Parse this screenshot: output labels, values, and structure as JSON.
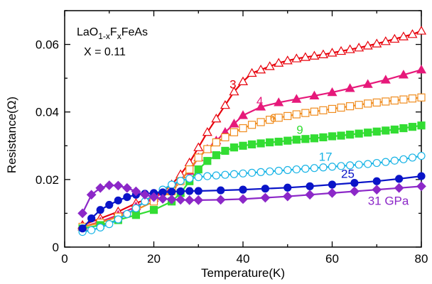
{
  "chart_data": {
    "type": "line",
    "title": "",
    "xlabel": "Temperature(K)",
    "ylabel": "Resistance(Ω)",
    "xlim": [
      0,
      80
    ],
    "ylim": [
      0,
      0.07
    ],
    "xticks": [
      "0",
      "20",
      "40",
      "60",
      "80"
    ],
    "yticks": [
      "0",
      "0.02",
      "0.04",
      "0.06"
    ],
    "xtick_values": [
      0,
      20,
      40,
      60,
      80
    ],
    "ytick_values": [
      0,
      0.02,
      0.04,
      0.06
    ],
    "grid": false,
    "legend": "inline labels",
    "annotation": {
      "compound": "LaO1-xFxFeAs",
      "compound_base": "LaO",
      "compound_sub1": "1-x",
      "compound_mid": "F",
      "compound_sub2": "x",
      "compound_end": "FeAs",
      "doping": "X = 0.11"
    },
    "series": [
      {
        "name": "3",
        "color": "#e8000b",
        "marker": "triangle-open",
        "label_at": [
          37,
          0.047
        ],
        "x": [
          4,
          8,
          12,
          16,
          20,
          22,
          24,
          26,
          28,
          30,
          32,
          34,
          36,
          38,
          40,
          42,
          44,
          46,
          48,
          50,
          52,
          54,
          56,
          58,
          60,
          62,
          64,
          66,
          68,
          70,
          72,
          74,
          76,
          78,
          80
        ],
        "y": [
          0.0065,
          0.0085,
          0.0105,
          0.013,
          0.015,
          0.0165,
          0.0185,
          0.0215,
          0.025,
          0.0295,
          0.034,
          0.038,
          0.042,
          0.046,
          0.049,
          0.0515,
          0.0525,
          0.0535,
          0.0545,
          0.0552,
          0.0558,
          0.0562,
          0.0566,
          0.057,
          0.0575,
          0.058,
          0.0585,
          0.059,
          0.0596,
          0.0602,
          0.0609,
          0.0616,
          0.0623,
          0.063,
          0.064
        ]
      },
      {
        "name": "4",
        "color": "#e6197a",
        "marker": "triangle-filled",
        "label_at": [
          43,
          0.042
        ],
        "x": [
          4,
          8,
          12,
          16,
          20,
          24,
          28,
          30,
          32,
          34,
          36,
          38,
          40,
          44,
          48,
          52,
          56,
          60,
          64,
          68,
          72,
          76,
          80
        ],
        "y": [
          0.006,
          0.0075,
          0.0095,
          0.012,
          0.0145,
          0.0175,
          0.0225,
          0.0265,
          0.029,
          0.0315,
          0.034,
          0.0365,
          0.039,
          0.0415,
          0.0428,
          0.0438,
          0.0448,
          0.0458,
          0.047,
          0.0482,
          0.0495,
          0.051,
          0.0525
        ]
      },
      {
        "name": "6",
        "color": "#f08c1e",
        "marker": "square-open",
        "label_at": [
          46,
          0.037
        ],
        "x": [
          4,
          8,
          12,
          16,
          20,
          24,
          26,
          28,
          30,
          32,
          34,
          36,
          38,
          40,
          42,
          44,
          46,
          48,
          50,
          52,
          54,
          56,
          58,
          60,
          62,
          64,
          66,
          68,
          70,
          72,
          74,
          76,
          78,
          80
        ],
        "y": [
          0.006,
          0.0072,
          0.009,
          0.011,
          0.0135,
          0.0165,
          0.0195,
          0.023,
          0.0265,
          0.029,
          0.031,
          0.0325,
          0.034,
          0.0352,
          0.0362,
          0.037,
          0.0377,
          0.0383,
          0.0388,
          0.0393,
          0.0397,
          0.0401,
          0.0405,
          0.0409,
          0.0413,
          0.0417,
          0.0421,
          0.0425,
          0.0428,
          0.0431,
          0.0434,
          0.0437,
          0.044,
          0.0443
        ]
      },
      {
        "name": "9",
        "color": "#33dd33",
        "marker": "square-filled",
        "label_at": [
          52,
          0.0335
        ],
        "x": [
          4,
          8,
          12,
          16,
          20,
          24,
          26,
          28,
          30,
          32,
          34,
          36,
          38,
          40,
          42,
          44,
          46,
          48,
          50,
          52,
          54,
          56,
          58,
          60,
          62,
          64,
          66,
          68,
          70,
          72,
          74,
          76,
          78,
          80
        ],
        "y": [
          0.0055,
          0.0065,
          0.008,
          0.0095,
          0.011,
          0.0135,
          0.016,
          0.0195,
          0.023,
          0.0255,
          0.0272,
          0.0285,
          0.0295,
          0.03,
          0.0304,
          0.0307,
          0.031,
          0.0312,
          0.0315,
          0.0318,
          0.032,
          0.0322,
          0.0325,
          0.0328,
          0.033,
          0.0333,
          0.0336,
          0.0339,
          0.0342,
          0.0345,
          0.0348,
          0.0352,
          0.0356,
          0.036
        ]
      },
      {
        "name": "17",
        "color": "#19b4e6",
        "marker": "circle-open",
        "label_at": [
          57,
          0.0255
        ],
        "x": [
          4,
          6,
          8,
          10,
          12,
          14,
          16,
          18,
          20,
          22,
          24,
          26,
          28,
          30,
          32,
          34,
          36,
          38,
          40,
          42,
          44,
          46,
          48,
          50,
          52,
          54,
          56,
          58,
          60,
          62,
          64,
          66,
          68,
          70,
          72,
          74,
          76,
          78,
          80
        ],
        "y": [
          0.0045,
          0.005,
          0.0058,
          0.0068,
          0.0082,
          0.0098,
          0.0115,
          0.0135,
          0.0155,
          0.017,
          0.0185,
          0.0196,
          0.0203,
          0.0207,
          0.021,
          0.0212,
          0.0214,
          0.0216,
          0.0218,
          0.022,
          0.0222,
          0.0224,
          0.0226,
          0.0228,
          0.023,
          0.0232,
          0.0234,
          0.0236,
          0.0238,
          0.024,
          0.0242,
          0.0244,
          0.0246,
          0.0249,
          0.0252,
          0.0256,
          0.026,
          0.0265,
          0.027
        ]
      },
      {
        "name": "25",
        "color": "#0a14c8",
        "marker": "circle-filled",
        "label_at": [
          62,
          0.0205
        ],
        "x": [
          4,
          6,
          8,
          10,
          12,
          14,
          16,
          18,
          20,
          22,
          24,
          26,
          28,
          30,
          35,
          40,
          45,
          50,
          55,
          60,
          65,
          70,
          75,
          80
        ],
        "y": [
          0.0055,
          0.0085,
          0.011,
          0.0125,
          0.0138,
          0.0148,
          0.0155,
          0.0158,
          0.016,
          0.0162,
          0.0164,
          0.0165,
          0.0166,
          0.0166,
          0.0168,
          0.017,
          0.0173,
          0.0176,
          0.018,
          0.0185,
          0.019,
          0.0195,
          0.0202,
          0.021
        ]
      },
      {
        "name": "31 GPa",
        "color": "#8c28c8",
        "marker": "diamond-filled",
        "label_at": [
          68,
          0.0125
        ],
        "x": [
          4,
          6,
          8,
          10,
          12,
          14,
          16,
          18,
          20,
          22,
          24,
          26,
          28,
          30,
          35,
          40,
          45,
          50,
          55,
          60,
          65,
          70,
          75,
          80
        ],
        "y": [
          0.01,
          0.0155,
          0.0175,
          0.0183,
          0.0182,
          0.0175,
          0.0165,
          0.0155,
          0.0148,
          0.0143,
          0.0141,
          0.014,
          0.0139,
          0.0139,
          0.014,
          0.0142,
          0.0146,
          0.015,
          0.0155,
          0.016,
          0.0165,
          0.017,
          0.0175,
          0.018
        ]
      }
    ]
  }
}
